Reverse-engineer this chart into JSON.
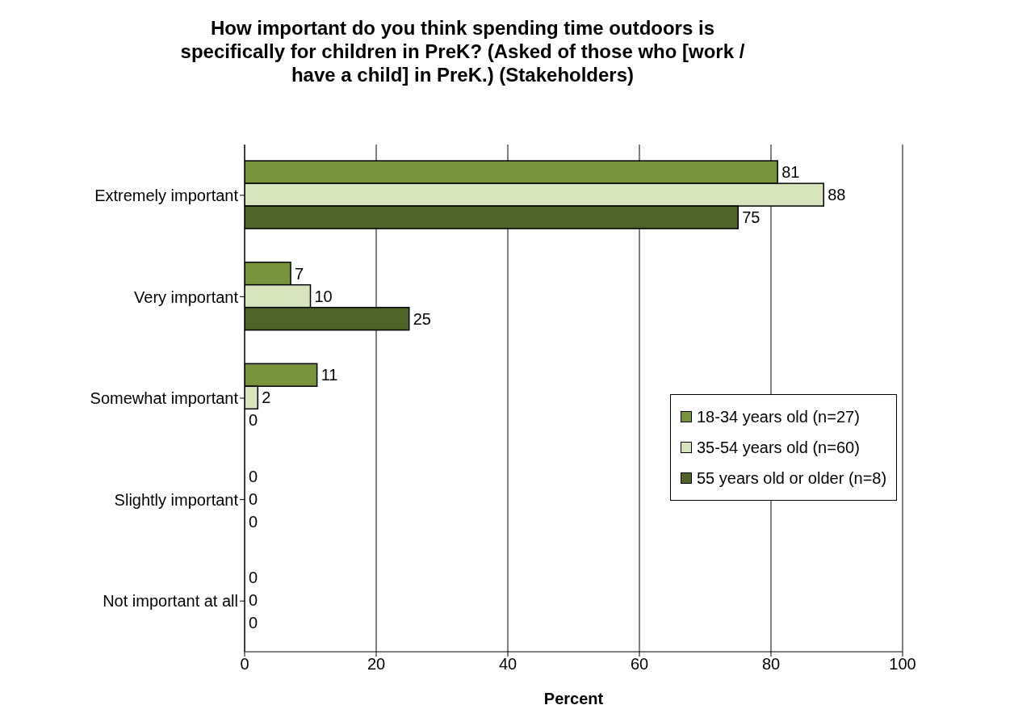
{
  "chart_data": {
    "type": "bar",
    "orientation": "horizontal",
    "title": "How important do you think spending time outdoors is specifically for children in PreK? (Asked of those who [work / have a child] in PreK.) (Stakeholders)",
    "xlabel": "Percent",
    "categories": [
      "Extremely important",
      "Very important",
      "Somewhat important",
      "Slightly important",
      "Not important at all"
    ],
    "series": [
      {
        "name": "18-34 years old (n=27)",
        "color": "#77933c",
        "values": [
          81,
          7,
          11,
          0,
          0
        ]
      },
      {
        "name": "35-54 years old (n=60)",
        "color": "#d7e4bd",
        "values": [
          88,
          10,
          2,
          0,
          0
        ]
      },
      {
        "name": "55 years old or older (n=8)",
        "color": "#4f6228",
        "values": [
          75,
          25,
          0,
          0,
          0
        ]
      }
    ],
    "xlim": [
      0,
      100
    ],
    "xticks": [
      0,
      20,
      40,
      60,
      80,
      100
    ],
    "grid": "x",
    "legend": "right",
    "data_labels": true
  }
}
